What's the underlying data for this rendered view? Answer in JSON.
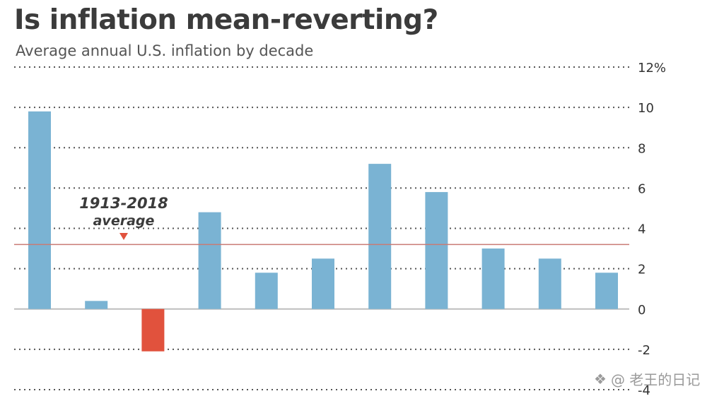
{
  "chart_data": {
    "type": "bar",
    "title": "Is inflation mean-reverting?",
    "subtitle": "Average annual U.S. inflation by decade",
    "values": [
      9.8,
      0.4,
      -2.1,
      4.8,
      1.8,
      2.5,
      7.2,
      5.8,
      3.0,
      2.5,
      1.8
    ],
    "ylim": [
      -4,
      12
    ],
    "yticks": [
      -4,
      -2,
      0,
      2,
      4,
      6,
      8,
      10,
      12
    ],
    "ytick_labels": [
      "-4",
      "-2",
      "0",
      "2",
      "4",
      "6",
      "8",
      "10",
      "12%"
    ],
    "average": 3.2,
    "annotation": {
      "line1": "1913-2018",
      "line2": "average"
    },
    "colors": {
      "positive": "#7ab3d3",
      "negative": "#e1523d",
      "average_line": "#c97a74",
      "grid": "#555555",
      "zero_line": "#bdbdbd"
    }
  },
  "watermark": {
    "text": "@ 老王的日记",
    "icon": "wechat-icon"
  }
}
